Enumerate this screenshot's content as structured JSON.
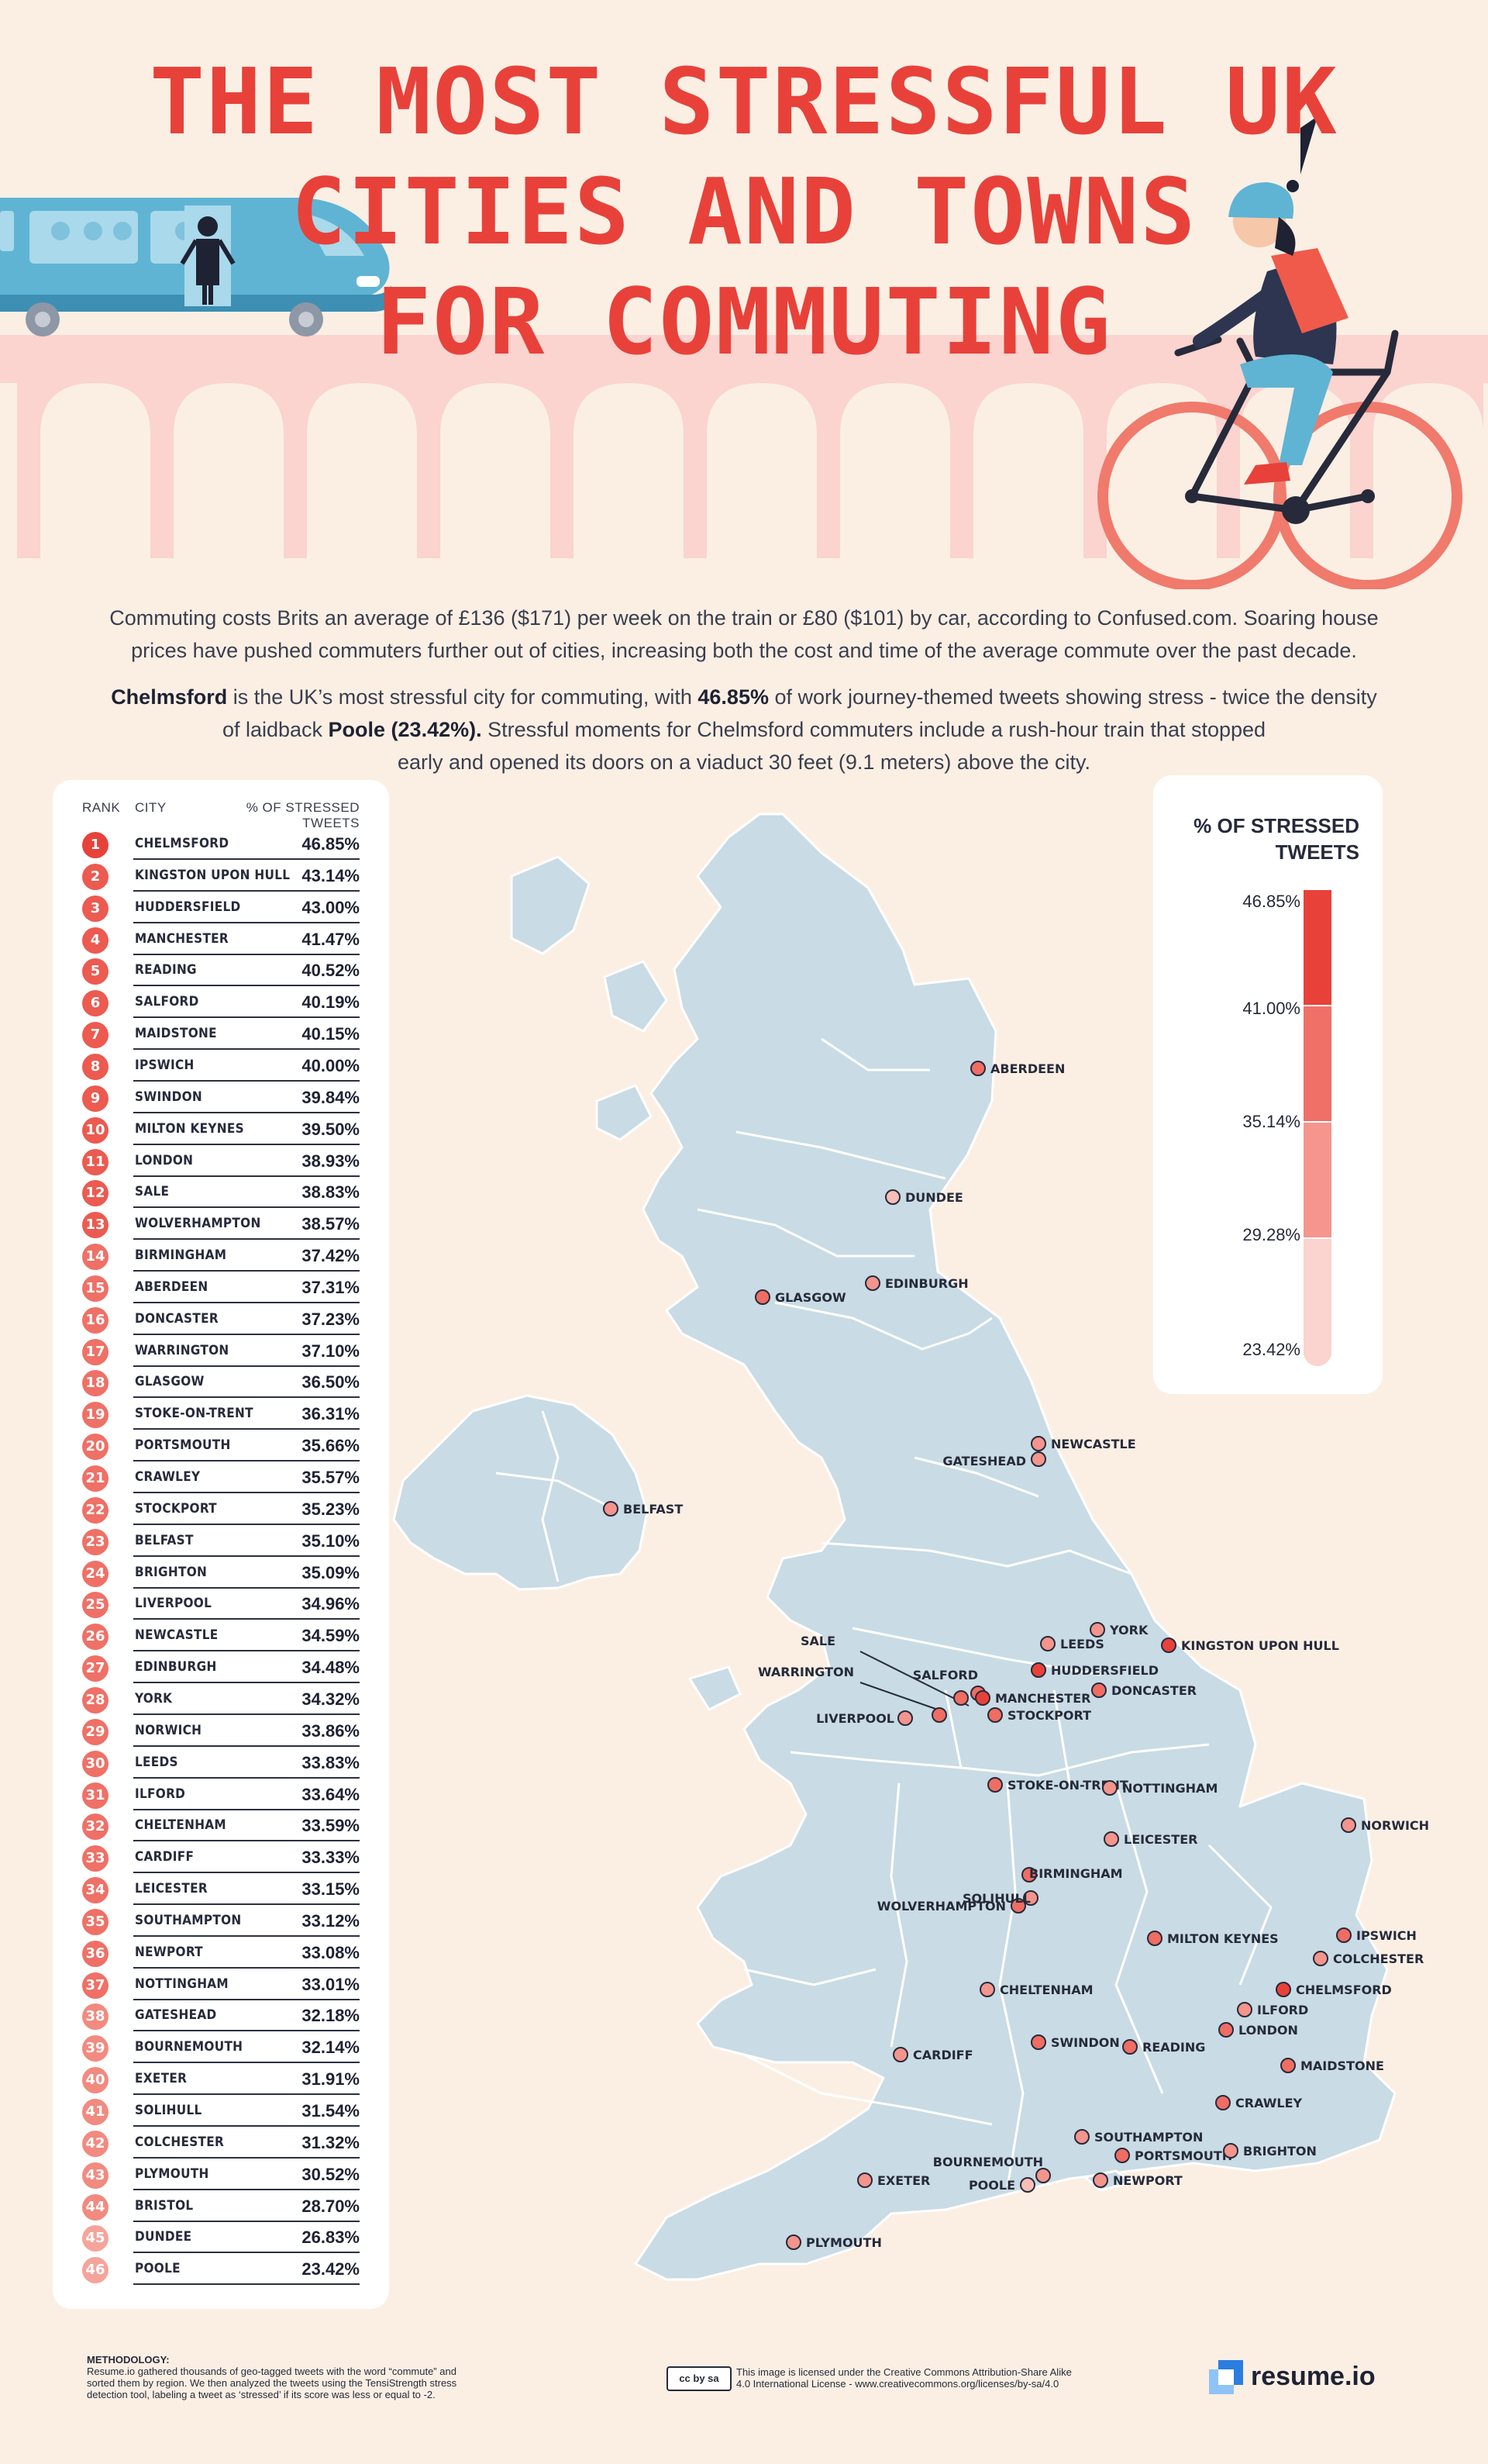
{
  "title": {
    "line1": "THE MOST STRESSFUL UK",
    "line2": "CITIES AND TOWNS",
    "line3": "FOR COMMUTING"
  },
  "intro": {
    "p1_line1": "Commuting costs Brits an average of £136 ($171) per week on the train or £80 ($101) by car, according to Confused.com. Soaring house",
    "p1_line2": "prices have pushed commuters further out of cities, increasing both the cost and time of the average commute over the past decade.",
    "p2_bold_city": "Chelmsford",
    "p2_a": " is the UK’s most stressful city for commuting, with ",
    "p2_bold_pct": "46.85%",
    "p2_b": " of work journey-themed tweets showing stress - twice the density",
    "p2_line2_a": "of laidback ",
    "p2_bold_poole": "Poole (23.42%).",
    "p2_line2_b": " Stressful moments for Chelmsford commuters include a rush-hour train that stopped",
    "p2_line3": "early and opened its doors on a viaduct 30 feet (9.1 meters) above the city."
  },
  "table": {
    "col_rank": "RANK",
    "col_city": "CITY",
    "col_pct": "% OF STRESSED TWEETS"
  },
  "legend": {
    "title_line1": "% OF STRESSED",
    "title_line2": "TWEETS",
    "ticks": [
      "46.85%",
      "41.00%",
      "35.14%",
      "29.28%",
      "23.42%"
    ],
    "colors": [
      "#e8413a",
      "#f07068",
      "#f5958d",
      "#f8b3ac",
      "#fbd3cf"
    ]
  },
  "colors": {
    "accent": "#e8413a",
    "map_land": "#c9dbe4",
    "map_border": "#ffffff",
    "background": "#fbefe4",
    "bridge": "#fbd3cf"
  },
  "chart_data": {
    "type": "table",
    "columns": [
      "RANK",
      "CITY",
      "% OF STRESSED TWEETS"
    ],
    "rows": [
      {
        "rank": "1",
        "city": "CHELMSFORD",
        "pct": "46.85%",
        "value": 46.85
      },
      {
        "rank": "2",
        "city": "KINGSTON UPON HULL",
        "pct": "43.14%",
        "value": 43.14
      },
      {
        "rank": "3",
        "city": "HUDDERSFIELD",
        "pct": "43.00%",
        "value": 43.0
      },
      {
        "rank": "4",
        "city": "MANCHESTER",
        "pct": "41.47%",
        "value": 41.47
      },
      {
        "rank": "5",
        "city": "READING",
        "pct": "40.52%",
        "value": 40.52
      },
      {
        "rank": "6",
        "city": "SALFORD",
        "pct": "40.19%",
        "value": 40.19
      },
      {
        "rank": "7",
        "city": "MAIDSTONE",
        "pct": "40.15%",
        "value": 40.15
      },
      {
        "rank": "8",
        "city": "IPSWICH",
        "pct": "40.00%",
        "value": 40.0
      },
      {
        "rank": "9",
        "city": "SWINDON",
        "pct": "39.84%",
        "value": 39.84
      },
      {
        "rank": "10",
        "city": "MILTON KEYNES",
        "pct": "39.50%",
        "value": 39.5
      },
      {
        "rank": "11",
        "city": "LONDON",
        "pct": "38.93%",
        "value": 38.93
      },
      {
        "rank": "12",
        "city": "SALE",
        "pct": "38.83%",
        "value": 38.83
      },
      {
        "rank": "13",
        "city": "WOLVERHAMPTON",
        "pct": "38.57%",
        "value": 38.57
      },
      {
        "rank": "14",
        "city": "BIRMINGHAM",
        "pct": "37.42%",
        "value": 37.42
      },
      {
        "rank": "15",
        "city": "ABERDEEN",
        "pct": "37.31%",
        "value": 37.31
      },
      {
        "rank": "16",
        "city": "DONCASTER",
        "pct": "37.23%",
        "value": 37.23
      },
      {
        "rank": "17",
        "city": "WARRINGTON",
        "pct": "37.10%",
        "value": 37.1
      },
      {
        "rank": "18",
        "city": "GLASGOW",
        "pct": "36.50%",
        "value": 36.5
      },
      {
        "rank": "19",
        "city": "STOKE-ON-TRENT",
        "pct": "36.31%",
        "value": 36.31
      },
      {
        "rank": "20",
        "city": "PORTSMOUTH",
        "pct": "35.66%",
        "value": 35.66
      },
      {
        "rank": "21",
        "city": "CRAWLEY",
        "pct": "35.57%",
        "value": 35.57
      },
      {
        "rank": "22",
        "city": "STOCKPORT",
        "pct": "35.23%",
        "value": 35.23
      },
      {
        "rank": "23",
        "city": "BELFAST",
        "pct": "35.10%",
        "value": 35.1
      },
      {
        "rank": "24",
        "city": "BRIGHTON",
        "pct": "35.09%",
        "value": 35.09
      },
      {
        "rank": "25",
        "city": "LIVERPOOL",
        "pct": "34.96%",
        "value": 34.96
      },
      {
        "rank": "26",
        "city": "NEWCASTLE",
        "pct": "34.59%",
        "value": 34.59
      },
      {
        "rank": "27",
        "city": "EDINBURGH",
        "pct": "34.48%",
        "value": 34.48
      },
      {
        "rank": "28",
        "city": "YORK",
        "pct": "34.32%",
        "value": 34.32
      },
      {
        "rank": "29",
        "city": "NORWICH",
        "pct": "33.86%",
        "value": 33.86
      },
      {
        "rank": "30",
        "city": "LEEDS",
        "pct": "33.83%",
        "value": 33.83
      },
      {
        "rank": "31",
        "city": "ILFORD",
        "pct": "33.64%",
        "value": 33.64
      },
      {
        "rank": "32",
        "city": "CHELTENHAM",
        "pct": "33.59%",
        "value": 33.59
      },
      {
        "rank": "33",
        "city": "CARDIFF",
        "pct": "33.33%",
        "value": 33.33
      },
      {
        "rank": "34",
        "city": "LEICESTER",
        "pct": "33.15%",
        "value": 33.15
      },
      {
        "rank": "35",
        "city": "SOUTHAMPTON",
        "pct": "33.12%",
        "value": 33.12
      },
      {
        "rank": "36",
        "city": "NEWPORT",
        "pct": "33.08%",
        "value": 33.08
      },
      {
        "rank": "37",
        "city": "NOTTINGHAM",
        "pct": "33.01%",
        "value": 33.01
      },
      {
        "rank": "38",
        "city": "GATESHEAD",
        "pct": "32.18%",
        "value": 32.18
      },
      {
        "rank": "39",
        "city": "BOURNEMOUTH",
        "pct": "32.14%",
        "value": 32.14
      },
      {
        "rank": "40",
        "city": "EXETER",
        "pct": "31.91%",
        "value": 31.91
      },
      {
        "rank": "41",
        "city": "SOLIHULL",
        "pct": "31.54%",
        "value": 31.54
      },
      {
        "rank": "42",
        "city": "COLCHESTER",
        "pct": "31.32%",
        "value": 31.32
      },
      {
        "rank": "43",
        "city": "PLYMOUTH",
        "pct": "30.52%",
        "value": 30.52
      },
      {
        "rank": "44",
        "city": "BRISTOL",
        "pct": "28.70%",
        "value": 28.7
      },
      {
        "rank": "45",
        "city": "DUNDEE",
        "pct": "26.83%",
        "value": 26.83
      },
      {
        "rank": "46",
        "city": "POOLE",
        "pct": "23.42%",
        "value": 23.42
      }
    ],
    "color_scale": {
      "min": 23.42,
      "max": 46.85
    }
  },
  "map_labels": [
    "ABERDEEN",
    "DUNDEE",
    "GLASGOW",
    "EDINBURGH",
    "NEWCASTLE",
    "GATESHEAD",
    "BELFAST",
    "YORK",
    "LEEDS",
    "KINGSTON UPON HULL",
    "HUDDERSFIELD",
    "SALE",
    "SALFORD",
    "WARRINGTON",
    "MANCHESTER",
    "DONCASTER",
    "LIVERPOOL",
    "STOCKPORT",
    "STOKE-ON-TRENT",
    "NOTTINGHAM",
    "LEICESTER",
    "NORWICH",
    "WOLVERHAMPTON",
    "BIRMINGHAM",
    "SOLIHULL",
    "MILTON KEYNES",
    "IPSWICH",
    "COLCHESTER",
    "CHELTENHAM",
    "CHELMSFORD",
    "ILFORD",
    "LONDON",
    "CARDIFF",
    "SWINDON",
    "READING",
    "MAIDSTONE",
    "CRAWLEY",
    "SOUTHAMPTON",
    "PORTSMOUTH",
    "BRIGHTON",
    "BOURNEMOUTH",
    "POOLE",
    "NEWPORT",
    "EXETER",
    "PLYMOUTH"
  ],
  "footer": {
    "method_title": "METHODOLOGY:",
    "method_l1": "Resume.io gathered thousands of geo-tagged tweets with the word “commute” and",
    "method_l2": "sorted them by region. We then analyzed the tweets using the TensiStrength stress",
    "method_l3": "detection tool, labeling a tweet as ‘stressed’ if its score was less or equal to -2.",
    "license_badge": "cc by sa",
    "license_l1": "This image is licensed under the Creative Commons  Attribution-Share Alike",
    "license_l2": "4.0 International License - www.creativecommons.org/licenses/by-sa/4.0",
    "brand": "resume.io"
  }
}
